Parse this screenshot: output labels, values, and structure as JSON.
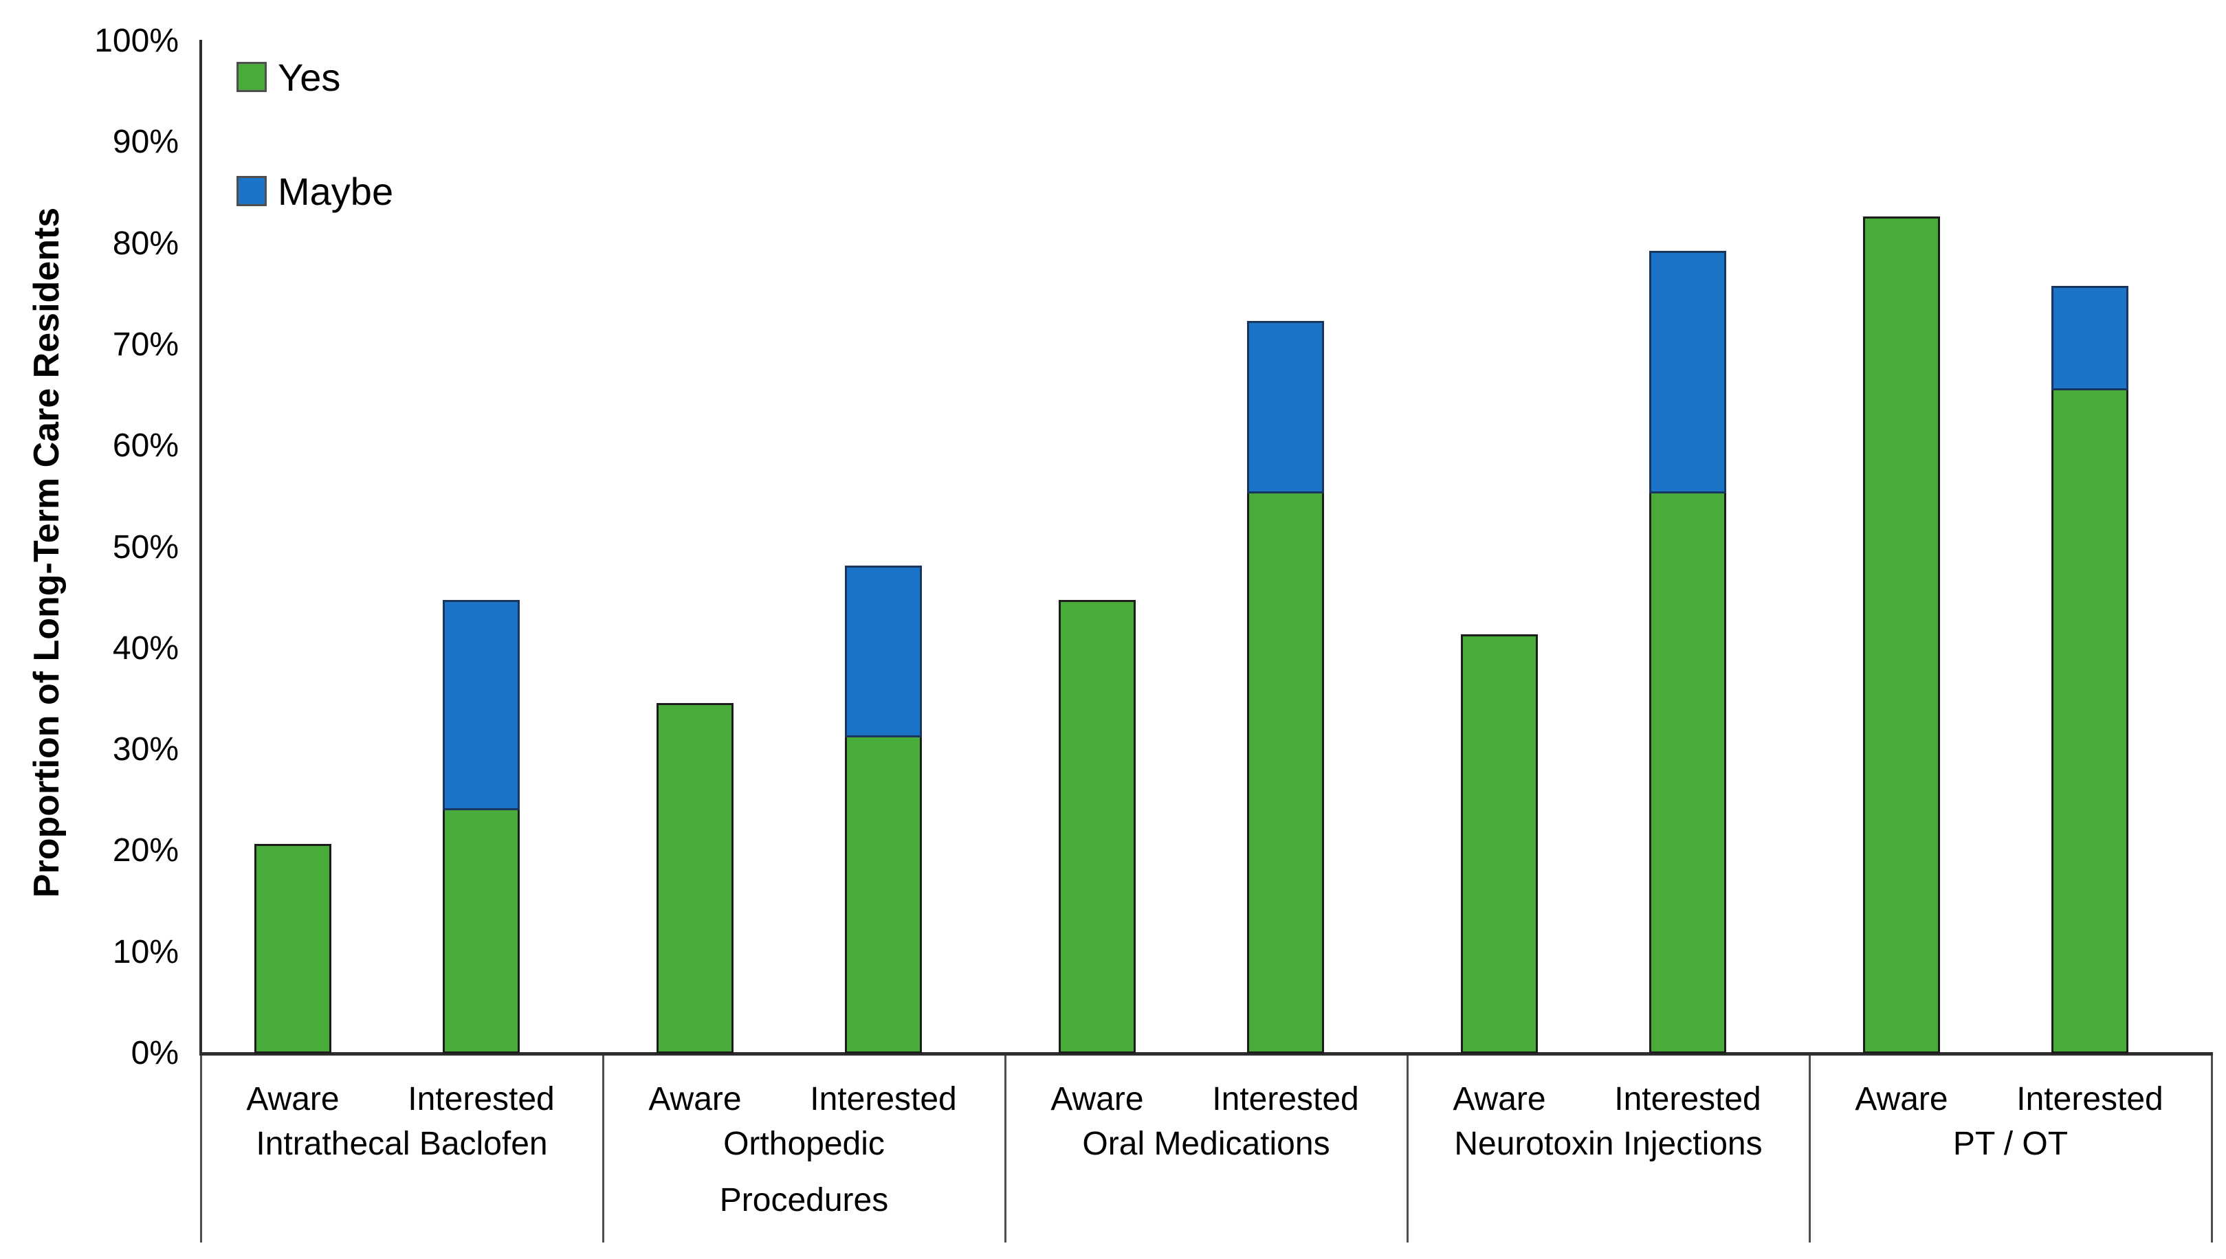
{
  "chart_data": {
    "type": "bar",
    "stacked": true,
    "grid": false,
    "legend_position": "top-left",
    "background": "#FFFFFF",
    "title": "",
    "xlabel": "",
    "ylabel": "Proportion of Long-Term Care Residents",
    "ylim": [
      0,
      100
    ],
    "ytick_step": 10,
    "yticks": [
      "0%",
      "10%",
      "20%",
      "30%",
      "40%",
      "50%",
      "60%",
      "70%",
      "80%",
      "90%",
      "100%"
    ],
    "categories": [
      "Aware",
      "Interested",
      "Aware",
      "Interested",
      "Aware",
      "Interested",
      "Aware",
      "Interested",
      "Aware",
      "Interested"
    ],
    "group_labels": [
      "Intrathecal Baclofen",
      "Orthopedic Procedures",
      "Oral Medications",
      "Neurotoxin Injections",
      "PT / OT"
    ],
    "series": [
      {
        "name": "Yes",
        "color": "#48AB3A",
        "border_color": "#1D1D1B",
        "values": [
          20.7,
          24.0,
          34.6,
          31.2,
          44.8,
          55.3,
          41.4,
          55.3,
          82.7,
          65.5
        ]
      },
      {
        "name": "Maybe",
        "color": "#1B74C7",
        "border_color": "#17375E",
        "values": [
          0,
          20.8,
          0,
          17.0,
          0,
          17.1,
          0,
          24.0,
          0,
          10.3
        ]
      }
    ],
    "groups": [
      {
        "label": "Intrathecal Baclofen",
        "label_lines": "Intrathecal Baclofen",
        "bars": [
          {
            "x": "Aware",
            "yes": 20.7,
            "maybe": 0
          },
          {
            "x": "Interested",
            "yes": 24.0,
            "maybe": 20.8
          }
        ]
      },
      {
        "label": "Orthopedic Procedures",
        "label_lines": "Orthopedic\nProcedures",
        "bars": [
          {
            "x": "Aware",
            "yes": 34.6,
            "maybe": 0
          },
          {
            "x": "Interested",
            "yes": 31.2,
            "maybe": 17.0
          }
        ]
      },
      {
        "label": "Oral Medications",
        "label_lines": "Oral Medications",
        "bars": [
          {
            "x": "Aware",
            "yes": 44.8,
            "maybe": 0
          },
          {
            "x": "Interested",
            "yes": 55.3,
            "maybe": 17.1
          }
        ]
      },
      {
        "label": "Neurotoxin Injections",
        "label_lines": "Neurotoxin Injections",
        "bars": [
          {
            "x": "Aware",
            "yes": 41.4,
            "maybe": 0
          },
          {
            "x": "Interested",
            "yes": 55.3,
            "maybe": 24.0
          }
        ]
      },
      {
        "label": "PT / OT",
        "label_lines": "PT / OT",
        "bars": [
          {
            "x": "Aware",
            "yes": 82.7,
            "maybe": 0
          },
          {
            "x": "Interested",
            "yes": 65.5,
            "maybe": 10.3
          }
        ]
      }
    ]
  }
}
